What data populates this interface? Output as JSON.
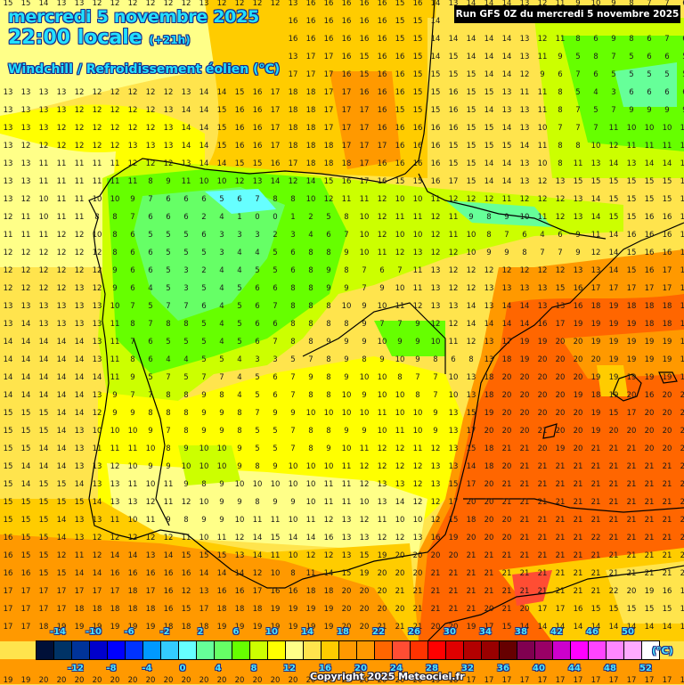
{
  "header": {
    "date_line": "mercredi 5 novembre 2025",
    "time_line": "22:00 locale",
    "offset": "(+21h)",
    "parameter": "Windchill / Refroidissement éolien (°C)",
    "run_info": "Run GFS 0Z du mercredi 5 novembre 2025"
  },
  "footer": {
    "copyright": "Copyright 2025 Meteociel.fr",
    "unit": "(°C)"
  },
  "colorbar": {
    "colors": [
      "#001038",
      "#003366",
      "#003399",
      "#0000cc",
      "#0000ff",
      "#0033ff",
      "#0099ff",
      "#33ccff",
      "#66ffff",
      "#66ff99",
      "#66ff66",
      "#66ff00",
      "#ccff00",
      "#ffff00",
      "#ffff88",
      "#ffe44d",
      "#ffcc00",
      "#ff9900",
      "#ff9900",
      "#ff6600",
      "#ff4d33",
      "#ff3300",
      "#ff0000",
      "#e00000",
      "#b30000",
      "#990000",
      "#660000",
      "#800050",
      "#990066",
      "#cc00cc",
      "#ff00ff",
      "#ff44ff",
      "#ff88ff",
      "#ffaaff",
      "#ffffff"
    ],
    "top_labels": [
      "-14",
      "-10",
      "-6",
      "-2",
      "2",
      "6",
      "10",
      "14",
      "18",
      "22",
      "26",
      "30",
      "34",
      "38",
      "42",
      "46",
      "50"
    ],
    "bottom_labels": [
      "-12",
      "-8",
      "-4",
      "0",
      "4",
      "8",
      "12",
      "16",
      "20",
      "24",
      "28",
      "32",
      "36",
      "40",
      "44",
      "48",
      "52"
    ]
  },
  "map": {
    "region": "Iberian Peninsula",
    "grid_origin": [
      7,
      4
    ],
    "grid_step": 20,
    "rows": [
      "15 15 14 13 13 12 12 12 12 12 12 13 12 12 12 12 13 16 16 16 16 16 15 16 14 13 14 14 14 13 12 11 9 10 9 8 7 7 6",
      "14 14 13 13 13 13 13 12 12 12 12 13 13 14 15 16 16 16 16 16 16 16 15 15 14 13 14 14 14 13 12 11 9 10 9 8 7 7 6",
      "14 14 13 13 13 13 13 12 12 12 12 13 13 14 15 16 16 16 16 16 16 16 15 15 14 14 14 14 14 13 12 11 8 6 9 8 6 7 6",
      "14 14 14 13 13 13 12 12 12 12 13 13 13 14 14 13 13 17 17 16 15 16 16 15 14 15 14 14 14 13 11 9 5 8 7 5 6 6 5",
      "13 13 13 12 12 12 12 12 12 12 13 13 14 15 15 16 17 17 17 16 15 16 16 15 15 15 15 14 14 12 9 6 7 6 5 5 5 5 5",
      "13 13 13 13 12 12 12 12 12 12 13 14 14 15 16 17 18 18 17 17 16 16 16 15 15 16 15 15 13 11 11 8 5 4 3 6 6 6 6",
      "13 13 13 13 12 12 12 12 12 13 14 14 15 16 16 17 18 18 17 17 17 16 15 15 15 16 15 14 13 13 11 8 7 5 7 9 9 9 9",
      "13 13 13 12 12 12 12 12 12 13 14 14 15 16 16 17 18 18 17 17 17 16 16 16 16 16 15 15 14 13 10 7 7 7 11 10 10 10 10",
      "13 12 12 12 12 12 12 13 13 13 14 14 15 16 16 17 18 18 18 17 17 17 16 16 16 15 15 15 15 14 11 8 8 10 12 11 11 11 11",
      "13 13 11 11 11 11 11 12 12 12 13 14 14 15 15 16 17 18 18 18 17 16 16 16 16 15 15 14 14 13 10 8 11 13 14 13 14 14 14",
      "13 13 11 11 11 11 11 11 8 9 11 10 10 12 13 14 12 14 15 16 17 16 15 15 16 17 15 14 14 13 12 13 15 15 15 15 15 15 15",
      "13 12 10 11 11 10 10 9 7 6 6 6 5 6 7 8 8 10 12 11 11 12 10 10 11 12 12 12 11 12 12 12 13 14 15 15 15 15 15",
      "12 11 10 11 11 8 8 7 6 6 6 2 4 1 0 0 1 2 5 8 10 12 11 11 12 11 9 8 9 10 11 12 13 14 15 15 16 16 16",
      "11 11 11 12 12 10 8 6 5 5 5 6 3 3 3 2 3 4 6 7 10 12 10 10 12 11 10 8 7 6 4 6 9 11 14 16 16 16 16",
      "12 12 12 12 12 12 8 6 6 5 5 5 3 4 4 5 6 8 8 9 10 11 12 13 12 12 10 9 9 8 7 7 9 12 14 15 16 16 16",
      "12 12 12 12 12 12 9 6 6 5 3 2 4 4 5 5 6 8 9 8 7 6 7 11 13 12 12 12 12 12 12 12 13 13 14 15 16 17 17",
      "12 12 12 12 13 12 9 6 4 5 3 5 4 5 6 6 8 8 9 9 7 9 10 11 13 12 12 13 13 13 13 15 16 17 17 17 17 17 17",
      "13 13 13 13 13 13 10 7 5 7 7 6 4 5 6 7 8 8 8 10 9 10 11 12 13 13 14 13 14 14 13 13 16 18 19 18 18 18 18",
      "13 14 13 13 13 13 11 8 7 8 8 5 4 5 6 6 8 8 8 8 9 7 7 9 12 12 14 14 14 14 16 17 19 19 19 19 18 18 18",
      "14 14 14 14 14 13 11 7 6 5 5 5 4 5 6 7 8 8 9 9 9 10 9 9 10 11 12 13 17 19 19 20 20 19 19 19 19 19 19",
      "14 14 14 14 14 13 11 8 6 4 4 5 5 4 3 3 5 7 8 9 8 9 10 9 8 6 8 13 18 19 20 20 20 20 19 19 19 19 19",
      "14 14 14 14 14 14 11 9 5 7 5 7 7 4 5 6 7 9 8 9 10 10 8 7 7 10 13 18 20 20 20 20 20 19 19 19 19 19 19",
      "14 14 14 14 14 13 9 7 7 8 8 9 8 4 5 6 7 8 8 10 9 10 10 8 7 10 13 18 20 20 20 20 19 18 19 20 16 20 20",
      "15 15 15 14 14 12 9 9 8 8 8 9 9 8 7 9 9 10 10 10 10 11 10 10 9 13 15 19 20 20 20 20 20 19 15 17 20 20 20",
      "15 15 15 14 13 10 10 10 9 7 8 9 9 8 5 5 7 8 8 9 9 10 11 10 9 13 17 20 20 20 21 20 20 19 20 20 20 20 20",
      "15 15 14 14 13 11 11 11 10 8 9 10 10 9 5 5 7 8 9 10 11 12 12 11 12 13 15 18 21 21 20 19 20 21 21 21 20 20 20",
      "15 14 14 14 13 13 12 10 9 9 10 10 10 9 8 9 10 10 10 11 12 12 12 12 13 13 14 18 20 21 21 21 21 21 21 21 21 21 20",
      "15 14 15 15 14 13 13 11 10 11 9 8 9 10 10 10 10 10 11 11 12 13 13 12 13 15 17 20 21 21 21 21 21 21 21 21 21 21 21",
      "15 15 15 15 15 14 13 13 12 11 12 10 9 9 8 9 9 10 11 11 10 13 14 12 12 17 20 20 21 21 21 21 21 21 21 21 21 21 21",
      "15 15 15 14 13 13 11 10 11 9 8 9 9 10 11 11 10 11 12 13 12 11 10 10 12 15 18 20 20 21 21 21 21 21 21 21 21 21 21",
      "16 15 15 14 13 12 12 12 12 12 11 10 11 12 14 15 14 14 16 13 13 12 12 13 16 19 20 20 20 21 21 21 21 22 21 21 21 21 21",
      "16 15 15 12 11 12 14 14 13 14 15 15 15 13 14 11 10 12 12 13 15 19 20 20 20 20 21 21 21 21 21 21 21 21 21 21 21 21 21",
      "16 16 15 15 14 14 16 16 16 16 16 14 14 14 12 10 8 11 14 15 19 20 20 20 21 21 21 21 21 21 21 21 21 21 21 21 21 21 21",
      "17 17 17 17 17 17 17 18 17 16 12 13 16 16 17 16 16 18 18 20 20 20 21 21 21 21 21 21 21 21 21 21 21 21 22 20 19 16 16",
      "17 17 17 17 18 18 18 18 18 16 15 17 18 18 18 19 19 19 19 20 20 20 20 21 21 21 21 20 21 20 17 17 16 15 15 15 15 15 15",
      "17 17 18 19 19 19 19 19 19 18 18 18 19 19 19 19 19 19 19 20 20 21 21 21 20 20 19 17 15 14 14 14 14 14 14 14 14 14 14",
      "18 18 18 19 19 19 18 19 19 19 19 19 20 20 20 19 20 20 20 21 20 21 22 21 20 19 17 17 15 15 16 16 16 16 16 16 16 16 16",
      "18 19 19 19 19 19 19 19 19 20 20 20 20 20 20 19 20 20 20 20 19 19 20 19 19 19 19 19 18 18 18 18 18 18 18 18 18 18 18",
      "19 19 20 20 20 20 20 20 20 20 20 20 20 20 20 20 20 20 20 20 20 20 20 20 19 18 17 17 17 17 17 17 17 17 17 17 17 17 17"
    ]
  }
}
